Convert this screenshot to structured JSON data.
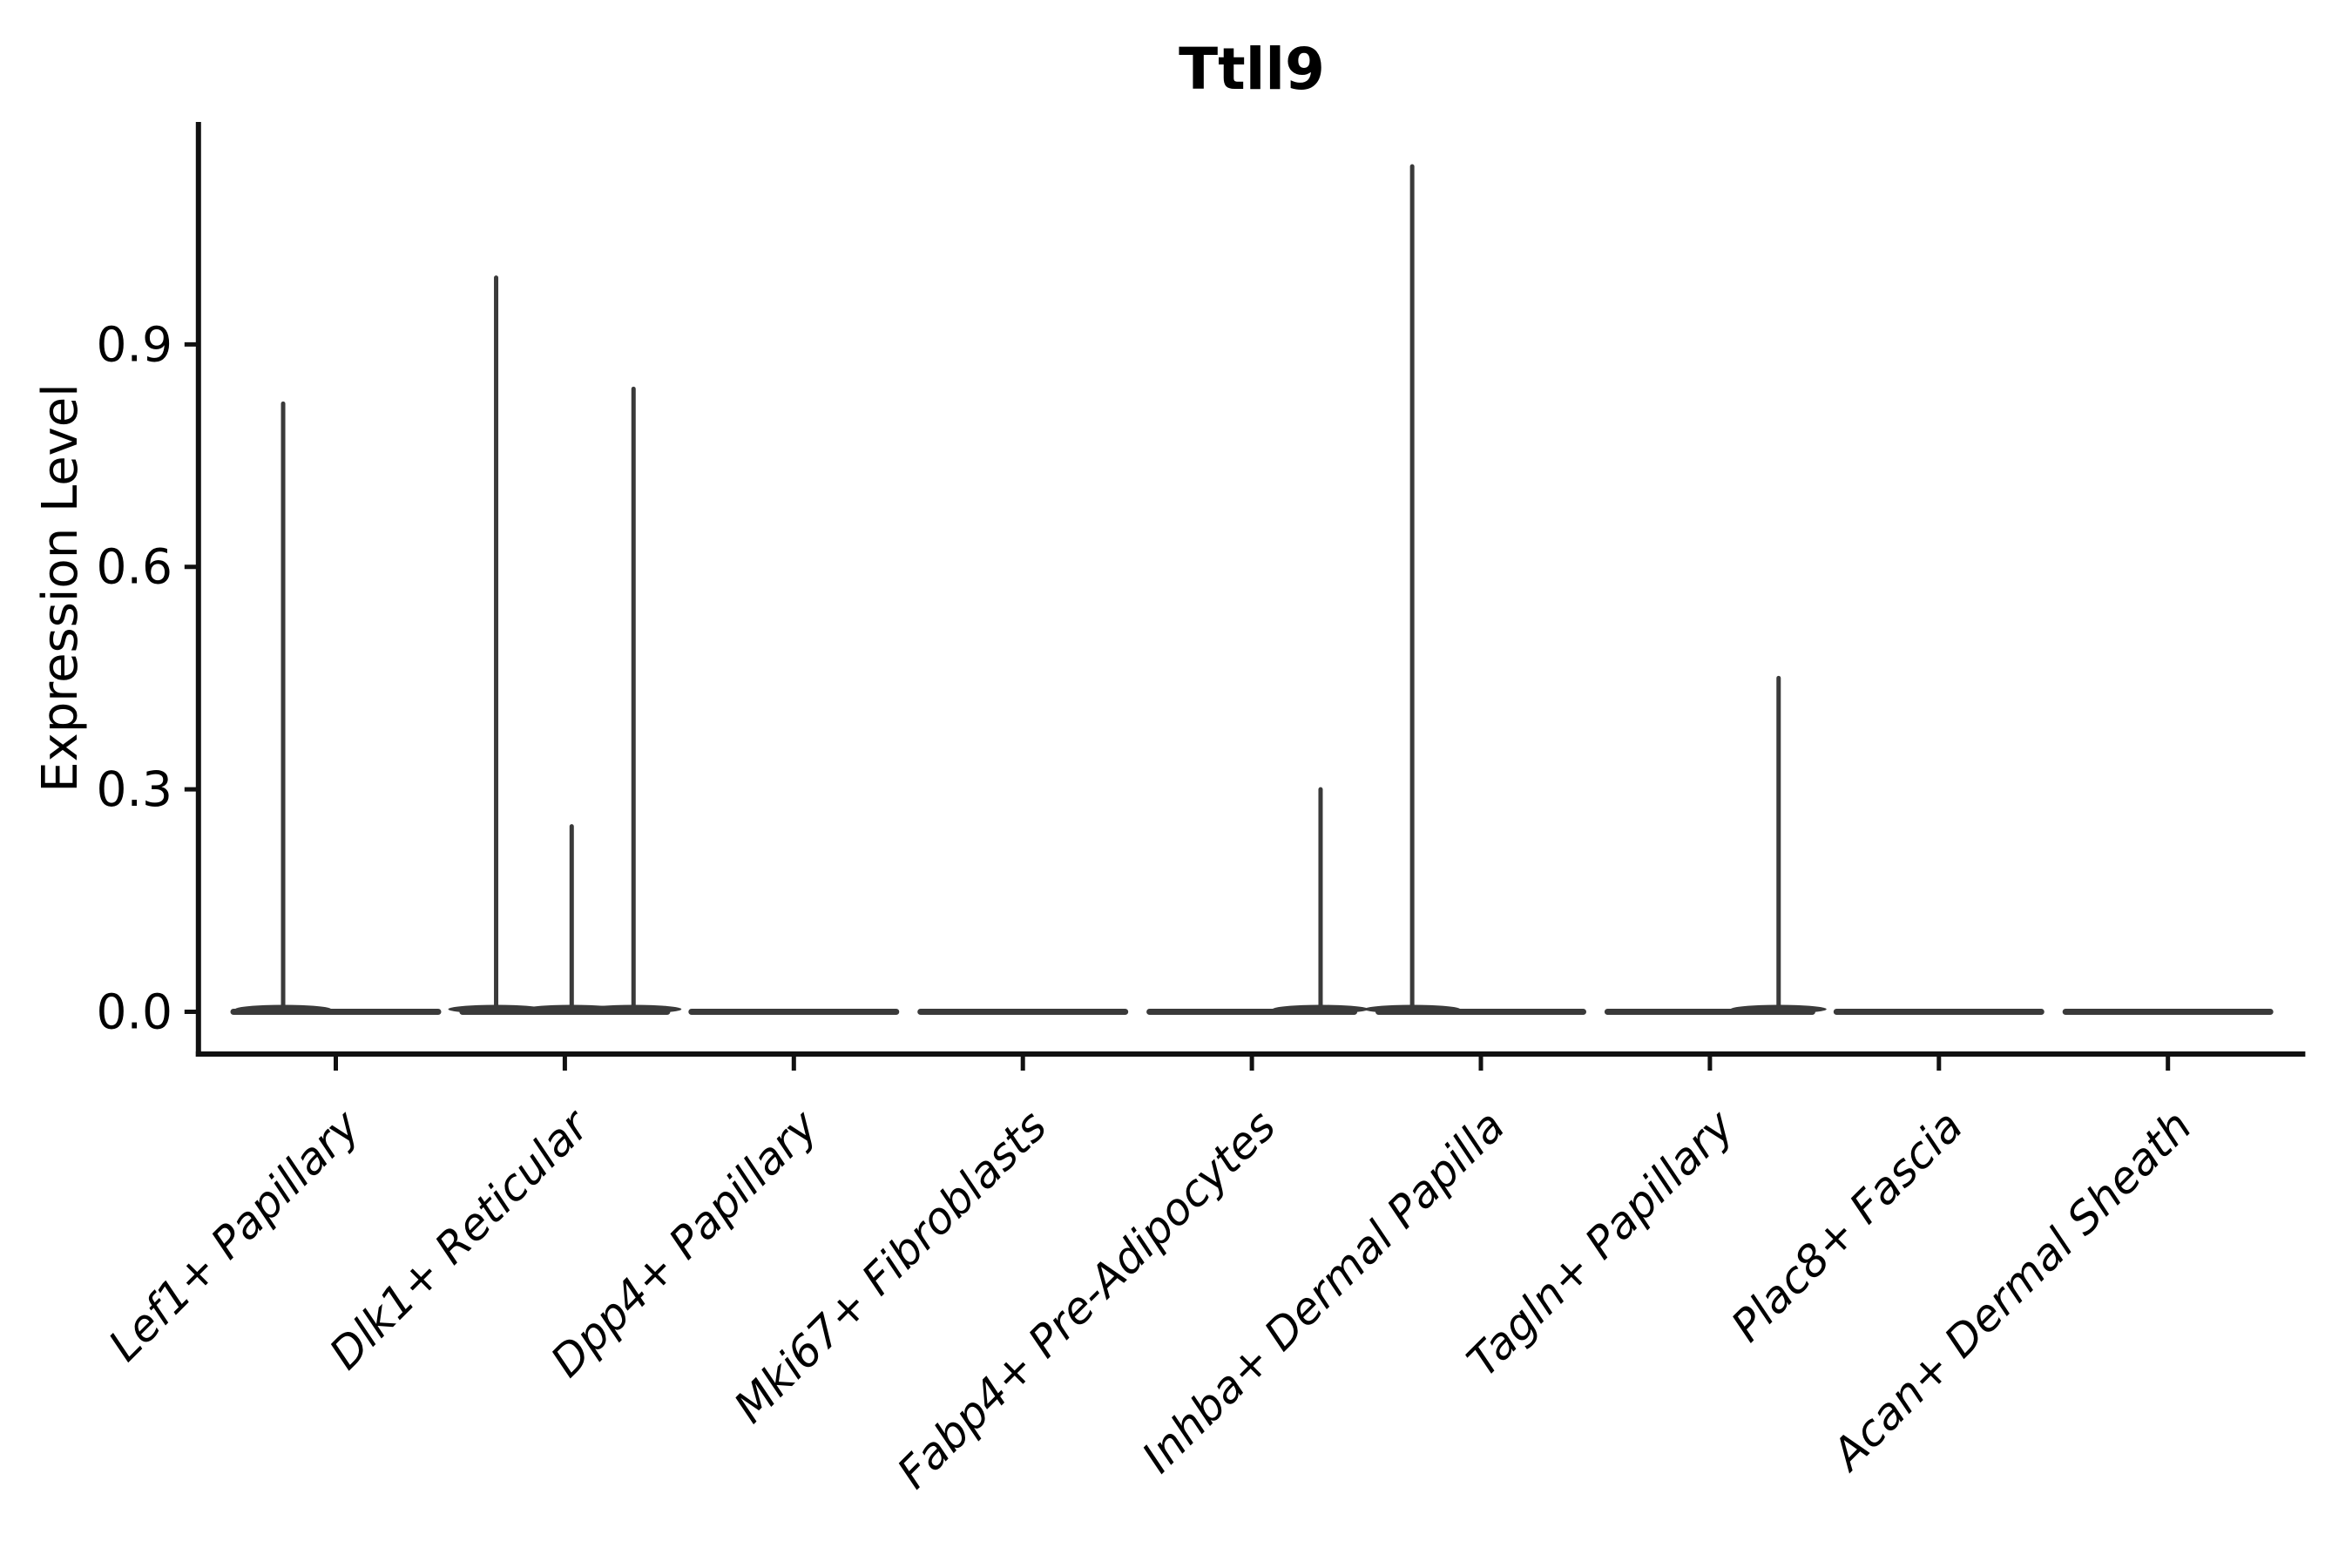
{
  "page": {
    "background_color": "#ffffff"
  },
  "chart_data": {
    "type": "violin",
    "title": "Ttll9",
    "xlabel": "",
    "ylabel": "Expression Level",
    "y_ticks": [
      0.0,
      0.3,
      0.6,
      0.9
    ],
    "ylim": [
      -0.06,
      1.2
    ],
    "grid": false,
    "legend": "none",
    "categories": [
      "Lef1+ Papillary",
      "Dlk1+ Reticular",
      "Dpp4+ Papillary",
      "Mki67+ Fibroblasts",
      "Fabp4+ Pre-Adipocytes",
      "Inhba+ Dermal Papilla",
      "Tagln+ Papillary",
      "Plac8+ Fascia",
      "Acan+ Dermal Sheath"
    ],
    "series": [
      {
        "category": "Lef1+ Papillary",
        "baseline_value": 0.0,
        "max_value": 0.82,
        "spikes": [
          {
            "offset": -0.23,
            "value": 0.82
          }
        ]
      },
      {
        "category": "Dlk1+ Reticular",
        "baseline_value": 0.0,
        "max_value": 0.99,
        "spikes": [
          {
            "offset": -0.3,
            "value": 0.99
          },
          {
            "offset": 0.03,
            "value": 0.25
          },
          {
            "offset": 0.3,
            "value": 0.84
          }
        ]
      },
      {
        "category": "Dpp4+ Papillary",
        "baseline_value": 0.0,
        "max_value": 0.0,
        "spikes": []
      },
      {
        "category": "Mki67+ Fibroblasts",
        "baseline_value": 0.0,
        "max_value": 0.0,
        "spikes": []
      },
      {
        "category": "Fabp4+ Pre-Adipocytes",
        "baseline_value": 0.0,
        "max_value": 0.3,
        "spikes": [
          {
            "offset": 0.3,
            "value": 0.3
          }
        ]
      },
      {
        "category": "Inhba+ Dermal Papilla",
        "baseline_value": 0.0,
        "max_value": 1.14,
        "spikes": [
          {
            "offset": -0.3,
            "value": 1.14
          }
        ]
      },
      {
        "category": "Tagln+ Papillary",
        "baseline_value": 0.0,
        "max_value": 0.45,
        "spikes": [
          {
            "offset": 0.3,
            "value": 0.45
          }
        ]
      },
      {
        "category": "Plac8+ Fascia",
        "baseline_value": 0.0,
        "max_value": 0.0,
        "spikes": []
      },
      {
        "category": "Acan+ Dermal Sheath",
        "baseline_value": 0.0,
        "max_value": 0.0,
        "spikes": []
      }
    ],
    "colors": {
      "violin": "#3a3a3a",
      "axis": "#111111",
      "text": "#000000"
    }
  }
}
